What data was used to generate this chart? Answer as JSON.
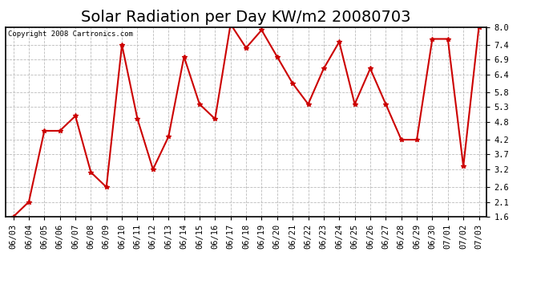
{
  "title": "Solar Radiation per Day KW/m2 20080703",
  "copyright": "Copyright 2008 Cartronics.com",
  "dates": [
    "06/03",
    "06/04",
    "06/05",
    "06/06",
    "06/07",
    "06/08",
    "06/09",
    "06/10",
    "06/11",
    "06/12",
    "06/13",
    "06/14",
    "06/15",
    "06/16",
    "06/17",
    "06/18",
    "06/19",
    "06/20",
    "06/21",
    "06/22",
    "06/23",
    "06/24",
    "06/25",
    "06/26",
    "06/27",
    "06/28",
    "06/29",
    "06/30",
    "07/01",
    "07/02",
    "07/03"
  ],
  "values": [
    1.6,
    2.1,
    4.5,
    4.5,
    5.0,
    3.1,
    2.6,
    7.4,
    4.9,
    3.2,
    4.3,
    7.0,
    5.4,
    4.9,
    8.1,
    7.3,
    7.9,
    7.0,
    6.1,
    5.4,
    6.6,
    7.5,
    5.4,
    6.6,
    5.4,
    4.2,
    4.2,
    7.6,
    7.6,
    3.3,
    8.0
  ],
  "line_color": "#cc0000",
  "marker": "*",
  "marker_size": 4,
  "bg_color": "#ffffff",
  "grid_color": "#bbbbbb",
  "ylim": [
    1.6,
    8.0
  ],
  "yticks": [
    1.6,
    2.1,
    2.6,
    3.2,
    3.7,
    4.2,
    4.8,
    5.3,
    5.8,
    6.4,
    6.9,
    7.4,
    8.0
  ],
  "title_fontsize": 14,
  "tick_fontsize": 7.5,
  "copyright_fontsize": 6.5
}
